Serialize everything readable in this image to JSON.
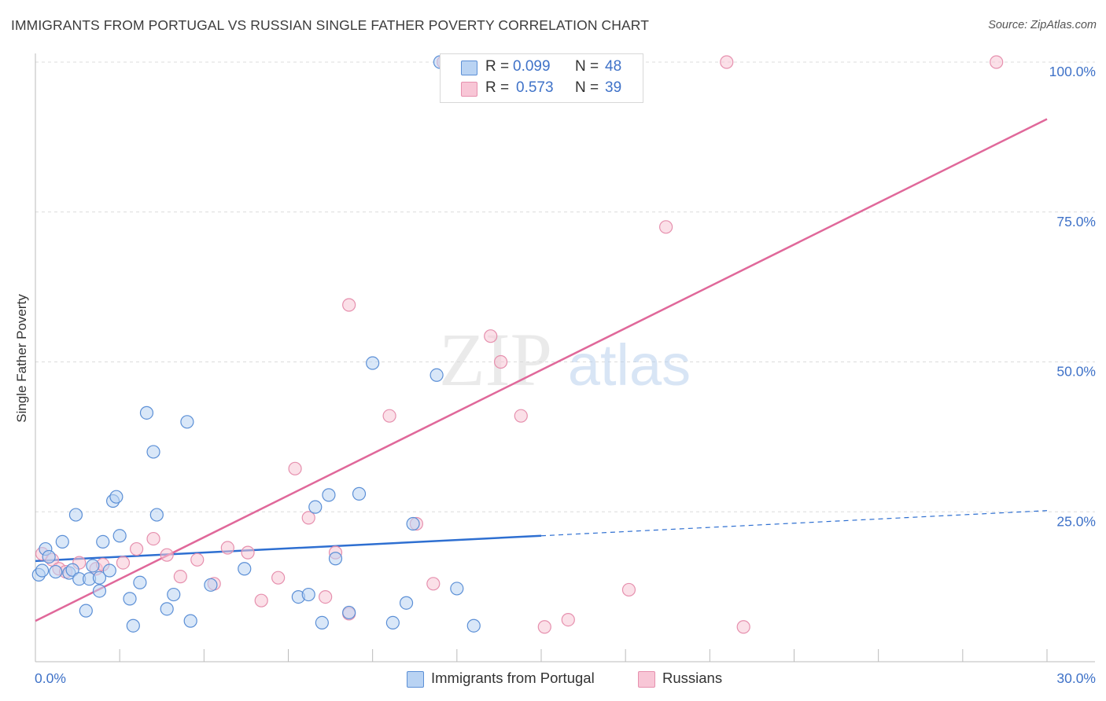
{
  "title": "IMMIGRANTS FROM PORTUGAL VS RUSSIAN SINGLE FATHER POVERTY CORRELATION CHART",
  "source": "Source: ZipAtlas.com",
  "legend": {
    "rows": [
      {
        "r_label": "R = ",
        "r_value": "0.099",
        "n_label": "N = ",
        "n_value": "48"
      },
      {
        "r_label": "R = ",
        "r_value": "0.573",
        "n_label": "N = ",
        "n_value": "39"
      }
    ]
  },
  "bottom_legend": [
    "Immigrants from Portugal",
    "Russians"
  ],
  "watermark": {
    "zip": "ZIP",
    "atlas": "atlas"
  },
  "colors": {
    "blue_fill": "#b9d3f3",
    "blue_stroke": "#5b8fd6",
    "blue_line": "#2e6fd1",
    "pink_fill": "#f8c6d6",
    "pink_stroke": "#e690ae",
    "pink_line": "#e0689a",
    "tick_label": "#3f72c8",
    "grid": "#dcdcdc"
  },
  "chart_data": {
    "type": "scatter",
    "title": "IMMIGRANTS FROM PORTUGAL VS RUSSIAN SINGLE FATHER POVERTY CORRELATION CHART",
    "xlabel": "",
    "ylabel": "Single Father Poverty",
    "xlim": [
      0,
      30
    ],
    "ylim": [
      0,
      103
    ],
    "x_tick_labels": [
      "0.0%",
      "30.0%"
    ],
    "y_ticks": [
      25,
      50,
      75,
      100
    ],
    "y_tick_labels": [
      "25.0%",
      "50.0%",
      "75.0%",
      "100.0%"
    ],
    "grid": true,
    "legend_position": "top-center",
    "series": [
      {
        "name": "Immigrants from Portugal",
        "color": "#5b8fd6",
        "points": [
          [
            0.1,
            14.5
          ],
          [
            0.2,
            15.2
          ],
          [
            0.3,
            18.8
          ],
          [
            0.4,
            17.5
          ],
          [
            0.6,
            15.0
          ],
          [
            0.8,
            20.0
          ],
          [
            1.0,
            14.8
          ],
          [
            1.1,
            15.3
          ],
          [
            1.2,
            24.5
          ],
          [
            1.3,
            13.8
          ],
          [
            1.5,
            8.5
          ],
          [
            1.6,
            13.8
          ],
          [
            1.7,
            16.0
          ],
          [
            1.9,
            11.8
          ],
          [
            1.9,
            14.0
          ],
          [
            2.0,
            20.0
          ],
          [
            2.2,
            15.2
          ],
          [
            2.3,
            26.8
          ],
          [
            2.4,
            27.5
          ],
          [
            2.5,
            21.0
          ],
          [
            2.8,
            10.5
          ],
          [
            2.9,
            6.0
          ],
          [
            3.1,
            13.2
          ],
          [
            3.3,
            41.5
          ],
          [
            3.5,
            35.0
          ],
          [
            3.6,
            24.5
          ],
          [
            3.9,
            8.8
          ],
          [
            4.1,
            11.2
          ],
          [
            4.5,
            40.0
          ],
          [
            4.6,
            6.8
          ],
          [
            5.2,
            12.8
          ],
          [
            6.2,
            15.5
          ],
          [
            7.8,
            10.8
          ],
          [
            8.1,
            11.2
          ],
          [
            8.3,
            25.8
          ],
          [
            8.5,
            6.5
          ],
          [
            8.7,
            27.8
          ],
          [
            8.9,
            17.2
          ],
          [
            9.3,
            8.2
          ],
          [
            9.6,
            28.0
          ],
          [
            10.0,
            49.8
          ],
          [
            10.6,
            6.5
          ],
          [
            11.0,
            9.8
          ],
          [
            11.2,
            23.0
          ],
          [
            11.9,
            47.8
          ],
          [
            12.0,
            100.0
          ],
          [
            12.5,
            12.2
          ],
          [
            13.0,
            6.0
          ]
        ]
      },
      {
        "name": "Russians",
        "color": "#e690ae",
        "points": [
          [
            0.2,
            18.0
          ],
          [
            0.5,
            17.0
          ],
          [
            0.7,
            15.5
          ],
          [
            0.9,
            15.0
          ],
          [
            1.3,
            16.5
          ],
          [
            1.8,
            15.5
          ],
          [
            2.0,
            16.2
          ],
          [
            2.6,
            16.5
          ],
          [
            3.0,
            18.8
          ],
          [
            3.5,
            20.5
          ],
          [
            3.9,
            17.8
          ],
          [
            4.3,
            14.2
          ],
          [
            4.8,
            17.0
          ],
          [
            5.3,
            13.0
          ],
          [
            5.7,
            19.0
          ],
          [
            6.3,
            18.2
          ],
          [
            6.7,
            10.2
          ],
          [
            7.2,
            14.0
          ],
          [
            7.7,
            32.2
          ],
          [
            8.1,
            24.0
          ],
          [
            8.6,
            10.8
          ],
          [
            8.9,
            18.2
          ],
          [
            9.3,
            8.0
          ],
          [
            9.3,
            59.5
          ],
          [
            10.5,
            41.0
          ],
          [
            11.3,
            23.0
          ],
          [
            11.8,
            13.0
          ],
          [
            12.1,
            100.0
          ],
          [
            13.5,
            54.3
          ],
          [
            13.8,
            50.0
          ],
          [
            14.4,
            41.0
          ],
          [
            15.1,
            5.8
          ],
          [
            15.6,
            100.0
          ],
          [
            15.8,
            7.0
          ],
          [
            17.6,
            12.0
          ],
          [
            18.7,
            72.5
          ],
          [
            20.5,
            100.0
          ],
          [
            21.0,
            5.8
          ],
          [
            28.5,
            100.0
          ]
        ]
      }
    ],
    "trend_lines": [
      {
        "series": "Immigrants from Portugal",
        "x": [
          0,
          15
        ],
        "y": [
          16.8,
          21.0
        ],
        "dashed_extension_to_x": 30,
        "dashed_end_y": 25.2
      },
      {
        "series": "Russians",
        "x": [
          0,
          30
        ],
        "y": [
          6.8,
          90.5
        ]
      }
    ]
  }
}
